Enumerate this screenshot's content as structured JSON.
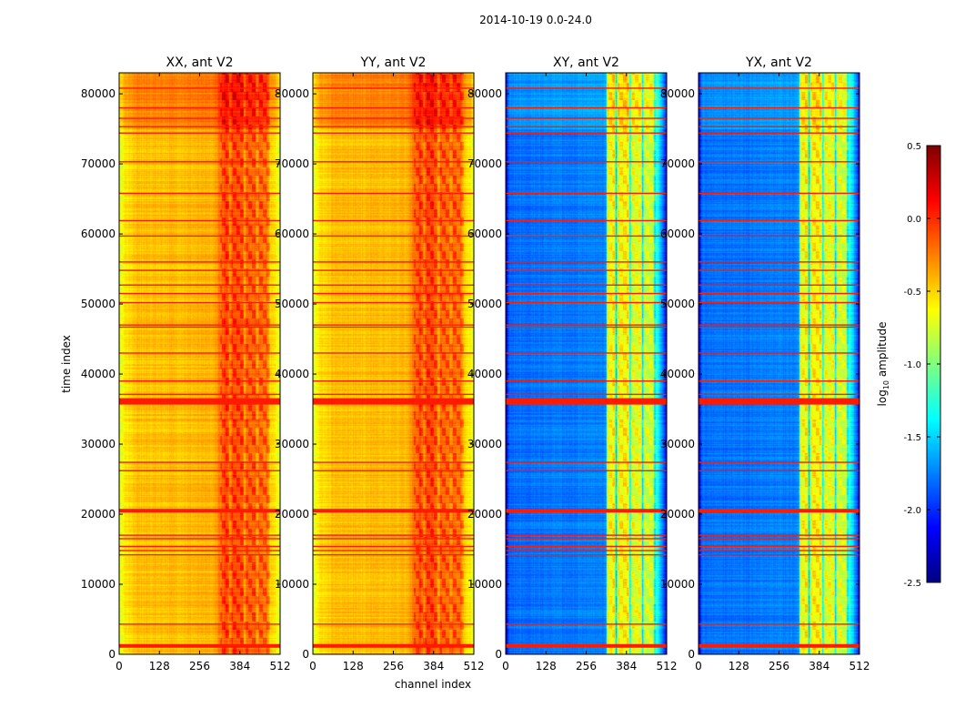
{
  "chart_data": {
    "type": "heatmap",
    "title": "2014-10-19 0.0-24.0",
    "xlabel": "channel index",
    "ylabel": "time index",
    "xlim": [
      0,
      512
    ],
    "ylim": [
      0,
      83000
    ],
    "xticks": [
      "0",
      "128",
      "256",
      "384",
      "512"
    ],
    "xtick_values": [
      0,
      128,
      256,
      384,
      512
    ],
    "yticks": [
      "0",
      "10000",
      "20000",
      "30000",
      "40000",
      "50000",
      "60000",
      "70000",
      "80000"
    ],
    "ytick_values": [
      0,
      10000,
      20000,
      30000,
      40000,
      50000,
      60000,
      70000,
      80000
    ],
    "colorbar": {
      "label": "log10 amplitude",
      "label_main": "log",
      "label_sub": "10",
      "label_rest": " amplitude",
      "range": [
        -2.5,
        0.5
      ],
      "ticks": [
        "-2.5",
        "-2.0",
        "-1.5",
        "-1.0",
        "-0.5",
        "0.0",
        "0.5"
      ],
      "tick_values": [
        -2.5,
        -2.0,
        -1.5,
        -1.0,
        -0.5,
        0.0,
        0.5
      ],
      "colormap": "jet"
    },
    "flagged_rows": [
      1200,
      4300,
      14200,
      14800,
      15400,
      16500,
      17000,
      20500,
      26200,
      27400,
      35900,
      36300,
      37100,
      39000,
      43000,
      46700,
      47000,
      50200,
      51500,
      52700,
      54800,
      56000,
      59700,
      61900,
      65800,
      70300,
      74400,
      75300,
      76500,
      78000,
      80800
    ],
    "flagged_value": 0.05,
    "panels": [
      {
        "title": "XX, ant V2",
        "base": -0.42,
        "top_region_boost": 0.18,
        "channel_profile": [
          [
            0,
            -0.75
          ],
          [
            20,
            -0.55
          ],
          [
            60,
            -0.45
          ],
          [
            300,
            -0.42
          ],
          [
            320,
            -0.2
          ],
          [
            340,
            -0.05
          ],
          [
            352,
            -0.3
          ],
          [
            360,
            -0.05
          ],
          [
            390,
            -0.1
          ],
          [
            398,
            -0.35
          ],
          [
            405,
            -0.12
          ],
          [
            430,
            -0.15
          ],
          [
            438,
            -0.35
          ],
          [
            445,
            -0.15
          ],
          [
            470,
            -0.2
          ],
          [
            480,
            -0.5
          ],
          [
            500,
            -0.6
          ],
          [
            512,
            -0.8
          ]
        ]
      },
      {
        "title": "YY, ant V2",
        "base": -0.42,
        "top_region_boost": 0.18,
        "channel_profile": [
          [
            0,
            -0.75
          ],
          [
            20,
            -0.55
          ],
          [
            60,
            -0.45
          ],
          [
            300,
            -0.42
          ],
          [
            320,
            -0.2
          ],
          [
            340,
            -0.05
          ],
          [
            352,
            -0.3
          ],
          [
            360,
            -0.05
          ],
          [
            390,
            -0.1
          ],
          [
            398,
            -0.35
          ],
          [
            405,
            -0.12
          ],
          [
            430,
            -0.15
          ],
          [
            438,
            -0.35
          ],
          [
            445,
            -0.15
          ],
          [
            470,
            -0.2
          ],
          [
            480,
            -0.5
          ],
          [
            500,
            -0.6
          ],
          [
            512,
            -0.8
          ]
        ]
      },
      {
        "title": "XY, ant V2",
        "base": -1.75,
        "top_region_boost": 0.1,
        "channel_profile": [
          [
            0,
            -2.2
          ],
          [
            10,
            -1.8
          ],
          [
            300,
            -1.75
          ],
          [
            318,
            -1.7
          ],
          [
            322,
            -0.7
          ],
          [
            345,
            -0.6
          ],
          [
            350,
            -1.6
          ],
          [
            356,
            -0.65
          ],
          [
            390,
            -0.6
          ],
          [
            394,
            -1.5
          ],
          [
            400,
            -0.7
          ],
          [
            430,
            -0.7
          ],
          [
            434,
            -1.5
          ],
          [
            440,
            -0.75
          ],
          [
            468,
            -0.8
          ],
          [
            472,
            -1.5
          ],
          [
            478,
            -1.2
          ],
          [
            500,
            -1.8
          ],
          [
            512,
            -2.2
          ]
        ]
      },
      {
        "title": "YX, ant V2",
        "base": -1.75,
        "top_region_boost": 0.1,
        "channel_profile": [
          [
            0,
            -2.2
          ],
          [
            10,
            -1.8
          ],
          [
            300,
            -1.75
          ],
          [
            318,
            -1.7
          ],
          [
            322,
            -0.7
          ],
          [
            345,
            -0.6
          ],
          [
            350,
            -1.6
          ],
          [
            356,
            -0.65
          ],
          [
            390,
            -0.6
          ],
          [
            394,
            -1.5
          ],
          [
            400,
            -0.7
          ],
          [
            430,
            -0.7
          ],
          [
            434,
            -1.5
          ],
          [
            440,
            -0.75
          ],
          [
            468,
            -0.8
          ],
          [
            472,
            -1.5
          ],
          [
            478,
            -1.2
          ],
          [
            500,
            -1.8
          ],
          [
            512,
            -2.2
          ]
        ]
      }
    ]
  }
}
